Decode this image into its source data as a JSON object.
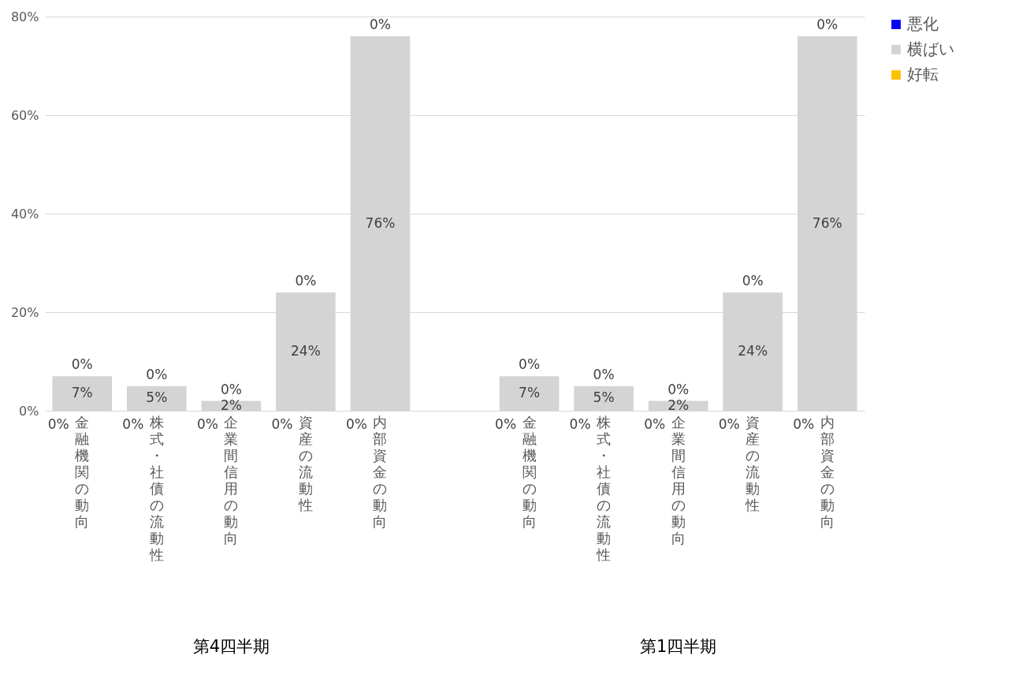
{
  "chart_data": {
    "type": "bar",
    "stacked": true,
    "categories": [
      "金融機関の動向",
      "株式・社債の流動性",
      "企業間信用の動向",
      "資産の流動性",
      "内部資金の動向",
      null,
      "金融機関の動向",
      "株式・社債の流動性",
      "企業間信用の動向",
      "資産の流動性",
      "内部資金の動向"
    ],
    "ylim": [
      0,
      80
    ],
    "yticks": [
      {
        "value": 0,
        "label": "0%"
      },
      {
        "value": 20,
        "label": "20%"
      },
      {
        "value": 40,
        "label": "40%"
      },
      {
        "value": 60,
        "label": "60%"
      },
      {
        "value": 80,
        "label": "80%"
      }
    ],
    "grid": "y",
    "legend": "right",
    "annotations": [
      "第4四半期",
      "第1四半期"
    ],
    "series": [
      {
        "name": "好転",
        "color": "#ffc000",
        "values": [
          0,
          0,
          0,
          0,
          0,
          null,
          0,
          0,
          0,
          0,
          0
        ],
        "value_labels": [
          "0%",
          "0%",
          "0%",
          "0%",
          "0%",
          null,
          "0%",
          "0%",
          "0%",
          "0%",
          "0%"
        ]
      },
      {
        "name": "横ばい",
        "color": "#d4d4d4",
        "values": [
          7,
          5,
          2,
          24,
          76,
          null,
          7,
          5,
          2,
          24,
          76
        ],
        "value_labels": [
          "7%",
          "5%",
          "2%",
          "24%",
          "76%",
          null,
          "7%",
          "5%",
          "2%",
          "24%",
          "76%"
        ]
      },
      {
        "name": "悪化",
        "color": "#0000ff",
        "values": [
          0,
          0,
          0,
          0,
          0,
          null,
          0,
          0,
          0,
          0,
          0
        ],
        "value_labels": [
          "0%",
          "0%",
          "0%",
          "0%",
          "0%",
          null,
          "0%",
          "0%",
          "0%",
          "0%",
          "0%"
        ]
      }
    ]
  }
}
